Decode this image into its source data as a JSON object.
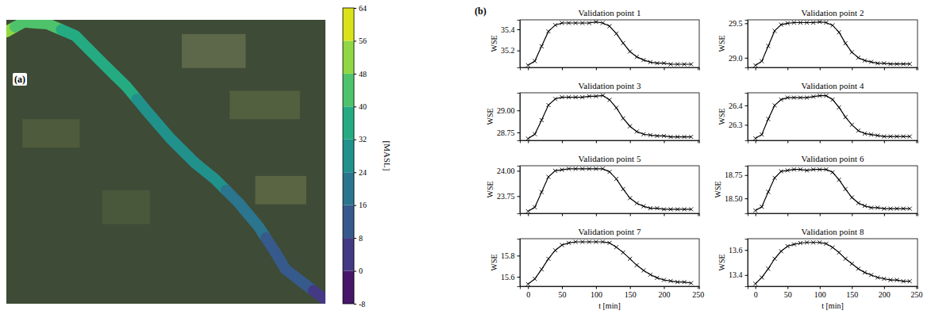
{
  "chart_data": [
    {
      "type": "map",
      "panel": "(a)",
      "river_elevation": [
        54,
        46,
        40,
        36,
        34,
        32,
        30,
        28,
        26,
        24,
        22,
        18,
        14,
        12,
        8,
        2
      ],
      "colorbar": {
        "label": "[MASL]",
        "range": [
          -8,
          64
        ],
        "ticks": [
          -8,
          0,
          8,
          16,
          24,
          32,
          40,
          48,
          56,
          64
        ]
      }
    },
    {
      "type": "line",
      "panel": "(b)",
      "title": "Validation point 1",
      "ylabel": "WSE",
      "tick_labels": "y",
      "x": [
        0,
        10,
        20,
        30,
        40,
        50,
        60,
        70,
        80,
        90,
        100,
        110,
        120,
        130,
        140,
        150,
        160,
        170,
        180,
        190,
        200,
        210,
        220,
        230,
        240
      ],
      "series": [
        {
          "color": "#000000",
          "marker": "x",
          "line_style": "solid",
          "values": [
            35.06,
            35.1,
            35.24,
            35.38,
            35.44,
            35.46,
            35.46,
            35.46,
            35.46,
            35.46,
            35.47,
            35.46,
            35.43,
            35.36,
            35.27,
            35.19,
            35.14,
            35.11,
            35.09,
            35.08,
            35.08,
            35.07,
            35.07,
            35.07,
            35.07
          ]
        }
      ],
      "xlim": [
        -12,
        252
      ],
      "xticks": [
        0,
        50,
        100,
        150,
        200,
        250
      ],
      "ylim": [
        35.04,
        35.49
      ],
      "yticks": [
        35.2,
        35.4
      ]
    },
    {
      "type": "line",
      "title": "Validation point 2",
      "ylabel": "WSE",
      "tick_labels": "y",
      "x": [
        0,
        10,
        20,
        30,
        40,
        50,
        60,
        70,
        80,
        90,
        100,
        110,
        120,
        130,
        140,
        150,
        160,
        170,
        180,
        190,
        200,
        210,
        220,
        230,
        240
      ],
      "series": [
        {
          "color": "#000000",
          "marker": "x",
          "line_style": "solid",
          "values": [
            28.89,
            28.95,
            29.17,
            29.39,
            29.48,
            29.5,
            29.51,
            29.51,
            29.51,
            29.51,
            29.52,
            29.51,
            29.47,
            29.37,
            29.21,
            29.08,
            29.0,
            28.96,
            28.94,
            28.92,
            28.92,
            28.91,
            28.91,
            28.91,
            28.91
          ]
        }
      ],
      "xlim": [
        -12,
        252
      ],
      "xticks": [
        0,
        50,
        100,
        150,
        200,
        250
      ],
      "ylim": [
        28.86,
        29.55
      ],
      "yticks": [
        {
          "value": 29,
          "label": "29.0"
        },
        29.5
      ]
    },
    {
      "type": "line",
      "title": "Validation point 3",
      "ylabel": "WSE",
      "tick_labels": "y",
      "x": [
        0,
        10,
        20,
        30,
        40,
        50,
        60,
        70,
        80,
        90,
        100,
        110,
        120,
        130,
        140,
        150,
        160,
        170,
        180,
        190,
        200,
        210,
        220,
        230,
        240
      ],
      "series": [
        {
          "color": "#000000",
          "marker": "x",
          "line_style": "solid",
          "values": [
            28.68,
            28.73,
            28.89,
            29.06,
            29.13,
            29.15,
            29.15,
            29.15,
            29.15,
            29.16,
            29.16,
            29.17,
            29.12,
            29.03,
            28.91,
            28.82,
            28.76,
            28.73,
            28.72,
            28.71,
            28.71,
            28.7,
            28.7,
            28.7,
            28.7
          ]
        }
      ],
      "xlim": [
        -12,
        252
      ],
      "xticks": [
        0,
        50,
        100,
        150,
        200,
        250
      ],
      "ylim": [
        28.66,
        29.2
      ],
      "yticks": [
        28.75,
        {
          "value": 29,
          "label": "29.00"
        }
      ]
    },
    {
      "type": "line",
      "title": "Validation point 4",
      "ylabel": "WSE",
      "tick_labels": "y",
      "x": [
        0,
        10,
        20,
        30,
        40,
        50,
        60,
        70,
        80,
        90,
        100,
        110,
        120,
        130,
        140,
        150,
        160,
        170,
        180,
        190,
        200,
        210,
        220,
        230,
        240
      ],
      "series": [
        {
          "color": "#000000",
          "marker": "x",
          "line_style": "solid",
          "values": [
            26.23,
            26.25,
            26.33,
            26.4,
            26.43,
            26.44,
            26.44,
            26.44,
            26.44,
            26.445,
            26.45,
            26.45,
            26.43,
            26.39,
            26.34,
            26.3,
            26.27,
            26.255,
            26.25,
            26.245,
            26.24,
            26.24,
            26.24,
            26.24,
            26.24
          ]
        }
      ],
      "xlim": [
        -12,
        252
      ],
      "xticks": [
        0,
        50,
        100,
        150,
        200,
        250
      ],
      "ylim": [
        26.22,
        26.465
      ],
      "yticks": [
        26.3,
        26.4
      ]
    },
    {
      "type": "line",
      "title": "Validation point 5",
      "ylabel": "WSE",
      "tick_labels": "y",
      "x": [
        0,
        10,
        20,
        30,
        40,
        50,
        60,
        70,
        80,
        90,
        100,
        110,
        120,
        130,
        140,
        150,
        160,
        170,
        180,
        190,
        200,
        210,
        220,
        230,
        240
      ],
      "series": [
        {
          "color": "#000000",
          "marker": "x",
          "line_style": "solid",
          "values": [
            23.6,
            23.64,
            23.79,
            23.94,
            24.0,
            24.01,
            24.02,
            24.02,
            24.02,
            24.02,
            24.02,
            24.02,
            23.99,
            23.92,
            23.82,
            23.73,
            23.68,
            23.65,
            23.63,
            23.63,
            23.62,
            23.62,
            23.62,
            23.62,
            23.62
          ]
        }
      ],
      "xlim": [
        -12,
        252
      ],
      "xticks": [
        0,
        50,
        100,
        150,
        200,
        250
      ],
      "ylim": [
        23.58,
        24.05
      ],
      "yticks": [
        23.75,
        {
          "value": 24,
          "label": "24.00"
        }
      ]
    },
    {
      "type": "line",
      "title": "Validation point 6",
      "ylabel": "WSE",
      "tick_labels": "y",
      "x": [
        0,
        10,
        20,
        30,
        40,
        50,
        60,
        70,
        80,
        90,
        100,
        110,
        120,
        130,
        140,
        150,
        160,
        170,
        180,
        190,
        200,
        210,
        220,
        230,
        240
      ],
      "series": [
        {
          "color": "#000000",
          "marker": "x",
          "line_style": "solid",
          "values": [
            18.37,
            18.41,
            18.57,
            18.72,
            18.79,
            18.8,
            18.81,
            18.81,
            18.8,
            18.81,
            18.81,
            18.81,
            18.78,
            18.7,
            18.6,
            18.51,
            18.45,
            18.42,
            18.4,
            18.4,
            18.39,
            18.39,
            18.39,
            18.39,
            18.39
          ]
        }
      ],
      "xlim": [
        -12,
        252
      ],
      "xticks": [
        0,
        50,
        100,
        150,
        200,
        250
      ],
      "ylim": [
        18.34,
        18.85
      ],
      "yticks": [
        {
          "value": 18.5,
          "label": "18.50"
        },
        18.75
      ]
    },
    {
      "type": "line",
      "title": "Validation point 7",
      "ylabel": "WSE",
      "xlabel": "t [min]",
      "x": [
        0,
        10,
        20,
        30,
        40,
        50,
        60,
        70,
        80,
        90,
        100,
        110,
        120,
        130,
        140,
        150,
        160,
        170,
        180,
        190,
        200,
        210,
        220,
        230,
        240
      ],
      "series": [
        {
          "color": "#000000",
          "marker": "x",
          "line_style": "solid",
          "values": [
            15.53,
            15.58,
            15.67,
            15.77,
            15.85,
            15.9,
            15.92,
            15.93,
            15.93,
            15.93,
            15.93,
            15.93,
            15.92,
            15.88,
            15.83,
            15.77,
            15.71,
            15.66,
            15.62,
            15.59,
            15.57,
            15.56,
            15.55,
            15.55,
            15.54
          ]
        }
      ],
      "xlim": [
        -12,
        252
      ],
      "xticks": [
        0,
        50,
        100,
        150,
        200,
        250
      ],
      "ylim": [
        15.51,
        15.96
      ],
      "yticks": [
        15.6,
        15.8
      ]
    },
    {
      "type": "line",
      "title": "Validation point 8",
      "ylabel": "WSE",
      "xlabel": "t [min]",
      "x": [
        0,
        10,
        20,
        30,
        40,
        50,
        60,
        70,
        80,
        90,
        100,
        110,
        120,
        130,
        140,
        150,
        160,
        170,
        180,
        190,
        200,
        210,
        220,
        230,
        240
      ],
      "series": [
        {
          "color": "#000000",
          "marker": "x",
          "line_style": "solid",
          "values": [
            13.33,
            13.38,
            13.45,
            13.53,
            13.59,
            13.63,
            13.645,
            13.655,
            13.66,
            13.66,
            13.66,
            13.65,
            13.62,
            13.58,
            13.53,
            13.49,
            13.45,
            13.42,
            13.4,
            13.38,
            13.37,
            13.36,
            13.36,
            13.35,
            13.35
          ]
        }
      ],
      "xlim": [
        -12,
        252
      ],
      "xticks": [
        0,
        50,
        100,
        150,
        200,
        250
      ],
      "ylim": [
        13.31,
        13.69
      ],
      "yticks": [
        13.4,
        13.6
      ]
    }
  ]
}
